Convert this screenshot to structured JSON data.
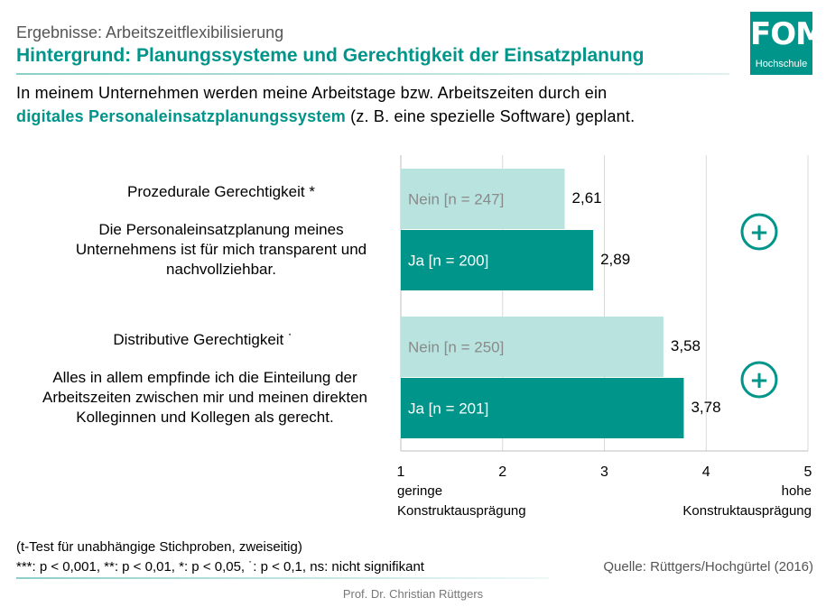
{
  "header": {
    "subtitle": "Ergebnisse: Arbeitszeitflexibilisierung",
    "title": "Hintergrund: Planungssysteme und Gerechtigkeit der Einsatzplanung",
    "logo_text": "FOM",
    "logo_sub": "Hochschule",
    "accent_color": "#00958a"
  },
  "question": {
    "line1": "In meinem Unternehmen werden meine Arbeitstage bzw. Arbeitszeiten durch ein",
    "line2_highlight": "digitales Personaleinsatzplanungssystem",
    "line2_rest": " (z. B. eine spezielle Software) geplant."
  },
  "groups": [
    {
      "title": "Prozedurale Gerechtigkeit",
      "significance": "*",
      "desc_lines": [
        "Die Personaleinsatzplanung meines",
        "Unternehmens ist für mich transparent und",
        "nachvollziehbar."
      ],
      "marker": "+"
    },
    {
      "title": "Distributive Gerechtigkeit",
      "significance": "˙",
      "desc_lines": [
        "Alles in allem empfinde ich die Einteilung der",
        "Arbeitszeiten zwischen mir und meinen direkten",
        "Kolleginnen und Kollegen als gerecht."
      ],
      "marker": "+"
    }
  ],
  "chart_data": {
    "type": "bar",
    "orientation": "horizontal",
    "xlim": [
      1,
      5
    ],
    "x_ticks": [
      "1",
      "2",
      "3",
      "4",
      "5"
    ],
    "x_low_label": [
      "geringe",
      "Konstruktausprägung"
    ],
    "x_high_label": [
      "hohe",
      "Konstruktausprägung"
    ],
    "grid": true,
    "series_colors": {
      "nein": "#b9e3df",
      "ja": "#00958a"
    },
    "bars": [
      {
        "group": 0,
        "label": "Nein [n = 247]",
        "value": 2.61,
        "value_label": "2,61",
        "series": "nein"
      },
      {
        "group": 0,
        "label": "Ja [n = 200]",
        "value": 2.89,
        "value_label": "2,89",
        "series": "ja"
      },
      {
        "group": 1,
        "label": "Nein [n = 250]",
        "value": 3.58,
        "value_label": "3,58",
        "series": "nein"
      },
      {
        "group": 1,
        "label": "Ja [n = 201]",
        "value": 3.78,
        "value_label": "3,78",
        "series": "ja"
      }
    ]
  },
  "footer": {
    "test_note": "(t-Test für unabhängige Stichproben, zweiseitig)",
    "sig_note": "***: p < 0,001,  **: p < 0,01,  *: p < 0,05,  ˙: p < 0,1, ns: nicht signifikant",
    "source": "Quelle: Rüttgers/Hochgürtel (2016)",
    "author": "Prof. Dr. Christian Rüttgers"
  }
}
